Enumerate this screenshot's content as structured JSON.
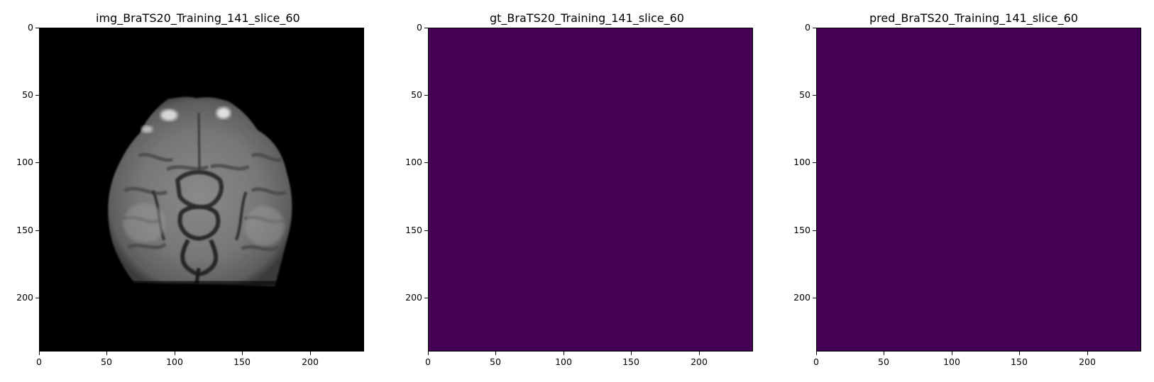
{
  "panels": [
    {
      "title": "img_BraTS20_Training_141_slice_60",
      "kind": "mri-grayscale",
      "background_color": "#000000"
    },
    {
      "title": "gt_BraTS20_Training_141_slice_60",
      "kind": "mask",
      "background_color": "#440154"
    },
    {
      "title": "pred_BraTS20_Training_141_slice_60",
      "kind": "mask",
      "background_color": "#440154"
    }
  ],
  "axis": {
    "x_ticks": [
      "0",
      "50",
      "100",
      "150",
      "200"
    ],
    "y_ticks": [
      "0",
      "50",
      "100",
      "150",
      "200"
    ],
    "tick_values": [
      0,
      50,
      100,
      150,
      200
    ],
    "range": [
      0,
      240
    ]
  }
}
